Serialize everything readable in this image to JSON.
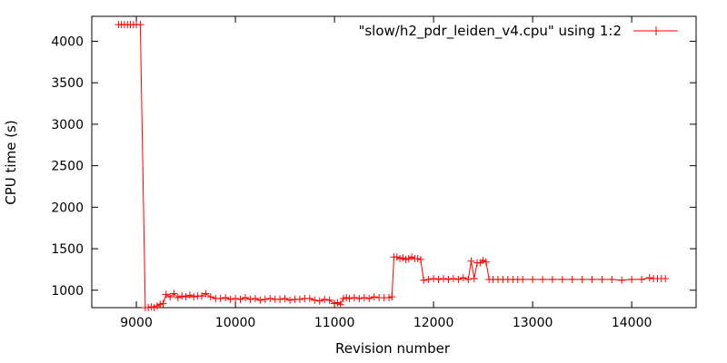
{
  "chart_data": {
    "type": "line",
    "xlabel": "Revision number",
    "ylabel": "CPU time (s)",
    "xlim": [
      8550,
      14650
    ],
    "ylim": [
      790,
      4300
    ],
    "x_ticks": [
      "9000",
      "10000",
      "11000",
      "12000",
      "13000",
      "14000"
    ],
    "y_ticks": [
      "1000",
      "1500",
      "2000",
      "2500",
      "3000",
      "3500",
      "4000"
    ],
    "grid": false,
    "legend": "top-right",
    "marker": "plus",
    "color": "#ff0000",
    "series": [
      {
        "name": "\"slow/h2_pdr_leiden_v4.cpu\" using 1:2",
        "x": [
          8820,
          8850,
          8880,
          8910,
          8940,
          8970,
          9000,
          9040,
          9090,
          9120,
          9150,
          9180,
          9210,
          9240,
          9270,
          9300,
          9340,
          9380,
          9420,
          9460,
          9500,
          9540,
          9580,
          9620,
          9660,
          9700,
          9750,
          9800,
          9850,
          9900,
          9950,
          10000,
          10050,
          10100,
          10150,
          10200,
          10250,
          10300,
          10350,
          10400,
          10450,
          10500,
          10550,
          10600,
          10650,
          10700,
          10750,
          10800,
          10850,
          10900,
          10950,
          11000,
          11030,
          11060,
          11090,
          11120,
          11150,
          11200,
          11250,
          11300,
          11350,
          11400,
          11450,
          11500,
          11550,
          11580,
          11600,
          11630,
          11660,
          11690,
          11720,
          11750,
          11780,
          11810,
          11840,
          11870,
          11900,
          11950,
          12000,
          12050,
          12100,
          12150,
          12200,
          12250,
          12300,
          12350,
          12380,
          12410,
          12440,
          12470,
          12500,
          12530,
          12560,
          12600,
          12650,
          12700,
          12750,
          12800,
          12850,
          12900,
          13000,
          13100,
          13200,
          13300,
          13400,
          13500,
          13600,
          13700,
          13800,
          13900,
          14000,
          14100,
          14180,
          14220,
          14260,
          14300,
          14340
        ],
        "y": [
          4200,
          4200,
          4200,
          4200,
          4200,
          4200,
          4200,
          4200,
          790,
          790,
          800,
          790,
          810,
          830,
          840,
          950,
          920,
          960,
          910,
          930,
          920,
          940,
          920,
          930,
          930,
          960,
          920,
          900,
          900,
          910,
          890,
          900,
          890,
          910,
          890,
          900,
          880,
          890,
          900,
          890,
          890,
          900,
          880,
          890,
          890,
          900,
          900,
          880,
          870,
          890,
          880,
          840,
          850,
          830,
          900,
          910,
          900,
          910,
          900,
          910,
          900,
          920,
          910,
          910,
          910,
          920,
          1400,
          1400,
          1380,
          1390,
          1370,
          1380,
          1400,
          1380,
          1380,
          1370,
          1120,
          1130,
          1140,
          1130,
          1140,
          1130,
          1140,
          1130,
          1150,
          1130,
          1350,
          1140,
          1330,
          1330,
          1360,
          1340,
          1130,
          1130,
          1130,
          1130,
          1130,
          1130,
          1130,
          1130,
          1130,
          1130,
          1130,
          1130,
          1130,
          1130,
          1130,
          1130,
          1130,
          1120,
          1130,
          1130,
          1150,
          1140,
          1140,
          1140,
          1140
        ]
      }
    ]
  }
}
